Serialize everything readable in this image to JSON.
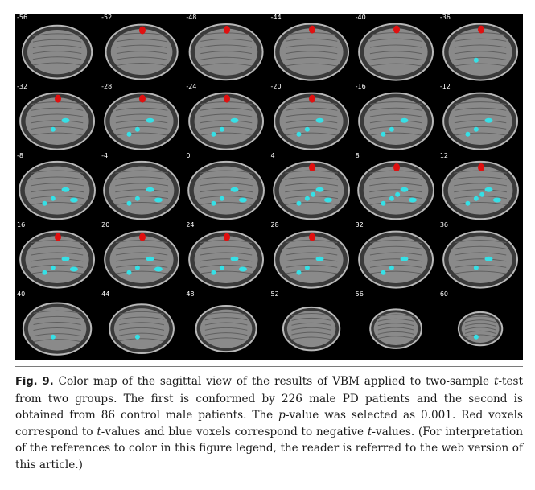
{
  "figure": {
    "slice_labels": [
      "-56",
      "-52",
      "-48",
      "-44",
      "-40",
      "-36",
      "-32",
      "-28",
      "-24",
      "-20",
      "-16",
      "-12",
      "-8",
      "-4",
      "0",
      "4",
      "8",
      "12",
      "16",
      "20",
      "24",
      "28",
      "32",
      "36",
      "40",
      "44",
      "48",
      "52",
      "56",
      "60"
    ],
    "colors": {
      "background": "#000000",
      "brain_tissue": "#8a8a8a",
      "positive_voxels": "#e01010",
      "negative_voxels": "#36e0e6"
    }
  },
  "caption": {
    "label": "Fig. 9.",
    "text_part1": " Color map of the sagittal view of the results of VBM applied to two-sample ",
    "t1": "t",
    "text_part2": "-test from two groups. The first is conformed by 226 male PD patients and the second is obtained from 86 control male patients. The ",
    "p": "p",
    "text_part3": "-value was selected as 0.001. Red voxels correspond to ",
    "t2": "t",
    "text_part4": "-values and blue voxels correspond to negative ",
    "t3": "t",
    "text_part5": "-values. (For interpretation of the references to color in this figure legend, the reader is referred to the web version of this article.)"
  }
}
